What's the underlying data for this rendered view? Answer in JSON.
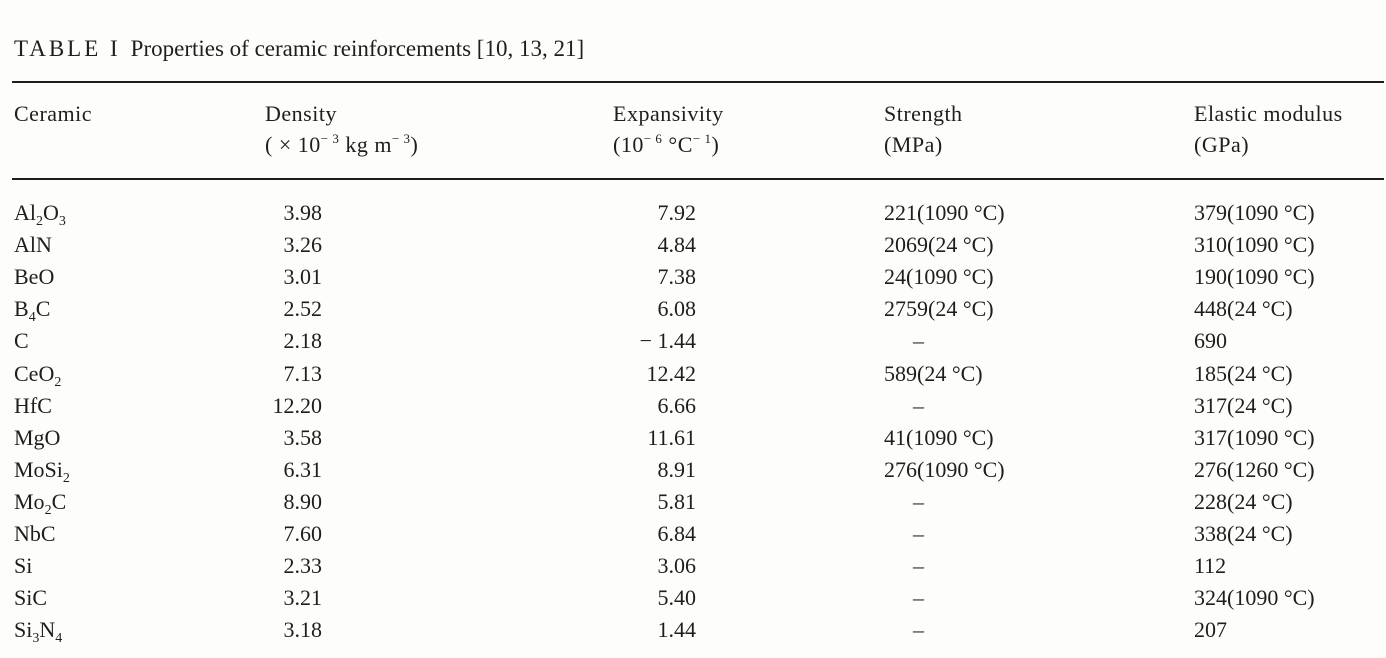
{
  "caption": {
    "label": "TABLE I",
    "text": "Properties of ceramic reinforcements [10, 13, 21]"
  },
  "headers": {
    "ceramic": "Ceramic",
    "density": "Density",
    "expansivity": "Expansivity",
    "strength": "Strength",
    "strength_unit": "(MPa)",
    "modulus": "Elastic modulus",
    "modulus_unit": "(GPa)"
  },
  "rows": [
    {
      "ceramic": "Al2O3",
      "density": "3.98",
      "expansivity": "7.92",
      "strength": "221(1090 °C)",
      "modulus": "379(1090 °C)"
    },
    {
      "ceramic": "AlN",
      "density": "3.26",
      "expansivity": "4.84",
      "strength": "2069(24 °C)",
      "modulus": "310(1090 °C)"
    },
    {
      "ceramic": "BeO",
      "density": "3.01",
      "expansivity": "7.38",
      "strength": "24(1090 °C)",
      "modulus": "190(1090 °C)"
    },
    {
      "ceramic": "B4C",
      "density": "2.52",
      "expansivity": "6.08",
      "strength": "2759(24 °C)",
      "modulus": "448(24 °C)"
    },
    {
      "ceramic": "C",
      "density": "2.18",
      "expansivity": "− 1.44",
      "strength": "–",
      "modulus": "690"
    },
    {
      "ceramic": "CeO2",
      "density": "7.13",
      "expansivity": "12.42",
      "strength": "589(24 °C)",
      "modulus": "185(24 °C)"
    },
    {
      "ceramic": "HfC",
      "density": "12.20",
      "expansivity": "6.66",
      "strength": "–",
      "modulus": "317(24 °C)"
    },
    {
      "ceramic": "MgO",
      "density": "3.58",
      "expansivity": "11.61",
      "strength": "41(1090 °C)",
      "modulus": "317(1090 °C)"
    },
    {
      "ceramic": "MoSi2",
      "density": "6.31",
      "expansivity": "8.91",
      "strength": "276(1090 °C)",
      "modulus": "276(1260 °C)"
    },
    {
      "ceramic": "Mo2C",
      "density": "8.90",
      "expansivity": "5.81",
      "strength": "–",
      "modulus": "228(24 °C)"
    },
    {
      "ceramic": "NbC",
      "density": "7.60",
      "expansivity": "6.84",
      "strength": "–",
      "modulus": "338(24 °C)"
    },
    {
      "ceramic": "Si",
      "density": "2.33",
      "expansivity": "3.06",
      "strength": "–",
      "modulus": "112"
    },
    {
      "ceramic": "SiC",
      "density": "3.21",
      "expansivity": "5.40",
      "strength": "–",
      "modulus": "324(1090 °C)"
    },
    {
      "ceramic": "Si3N4",
      "density": "3.18",
      "expansivity": "1.44",
      "strength": "–",
      "modulus": "207"
    }
  ]
}
